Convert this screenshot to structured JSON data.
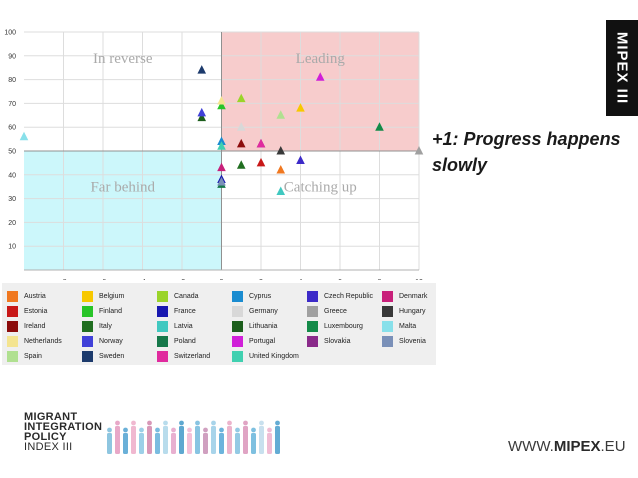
{
  "badge": {
    "text": "MIPEX III"
  },
  "tagline": "+1: Progress happens slowly",
  "logo": {
    "line1": "MIGRANT",
    "line2": "INTEGRATION",
    "line3": "POLICY",
    "line4": "INDEX III"
  },
  "url": {
    "prefix": "WWW.",
    "brand": "MIPEX",
    "suffix": ".EU"
  },
  "chart_data": {
    "type": "scatter",
    "title": "",
    "xlabel": "",
    "ylabel": "",
    "xlim": [
      -10,
      10
    ],
    "ylim": [
      0,
      100
    ],
    "x_ticks": [
      -8,
      -6,
      -4,
      -2,
      0,
      2,
      4,
      6,
      8,
      10
    ],
    "y_ticks": [
      10,
      20,
      30,
      40,
      50,
      60,
      70,
      80,
      90,
      100
    ],
    "grid": true,
    "quadrants": [
      {
        "label": "In reverse",
        "color": "#ffffff"
      },
      {
        "label": "Leading",
        "color": "#f7cccc"
      },
      {
        "label": "Far behind",
        "color": "#ccf7fb"
      },
      {
        "label": "Catching up",
        "color": "#ffffff"
      }
    ],
    "legend_placement": "bottom",
    "series": [
      {
        "name": "Austria",
        "color": "#f07820",
        "points": [
          [
            3,
            42
          ]
        ]
      },
      {
        "name": "Belgium",
        "color": "#f7c800",
        "points": [
          [
            4,
            68
          ]
        ]
      },
      {
        "name": "Canada",
        "color": "#9ad42a",
        "points": [
          [
            1,
            72
          ]
        ]
      },
      {
        "name": "Cyprus",
        "color": "#1a8cd0",
        "points": [
          [
            0,
            54
          ]
        ]
      },
      {
        "name": "Czech Republic",
        "color": "#3c2ac8",
        "points": [
          [
            4,
            46
          ]
        ]
      },
      {
        "name": "Denmark",
        "color": "#c8207a",
        "points": [
          [
            0,
            43
          ]
        ]
      },
      {
        "name": "Estonia",
        "color": "#c81818",
        "points": [
          [
            2,
            45
          ]
        ]
      },
      {
        "name": "Finland",
        "color": "#28c428",
        "points": [
          [
            0,
            69
          ]
        ]
      },
      {
        "name": "France",
        "color": "#1818b0",
        "points": [
          [
            0,
            38
          ]
        ]
      },
      {
        "name": "Germany",
        "color": "#d8d8d8",
        "points": [
          [
            1,
            60
          ]
        ]
      },
      {
        "name": "Greece",
        "color": "#a0a0a0",
        "points": [
          [
            10,
            50
          ]
        ]
      },
      {
        "name": "Hungary",
        "color": "#383838",
        "points": [
          [
            3,
            50
          ]
        ]
      },
      {
        "name": "Ireland",
        "color": "#8c0c0c",
        "points": [
          [
            1,
            53
          ]
        ]
      },
      {
        "name": "Italy",
        "color": "#206e20",
        "points": [
          [
            1,
            44
          ]
        ]
      },
      {
        "name": "Latvia",
        "color": "#40c8c0",
        "points": [
          [
            3,
            33
          ]
        ]
      },
      {
        "name": "Lithuania",
        "color": "#1c5e1c",
        "points": [
          [
            -1,
            64
          ]
        ]
      },
      {
        "name": "Luxembourg",
        "color": "#138a48",
        "points": [
          [
            8,
            60
          ]
        ]
      },
      {
        "name": "Malta",
        "color": "#88e0ea",
        "points": [
          [
            -10,
            56
          ]
        ]
      },
      {
        "name": "Netherlands",
        "color": "#f4e490",
        "points": [
          [
            0,
            71
          ]
        ]
      },
      {
        "name": "Norway",
        "color": "#4040d8",
        "points": [
          [
            -1,
            66
          ]
        ]
      },
      {
        "name": "Poland",
        "color": "#16784a",
        "points": [
          [
            0,
            36
          ]
        ]
      },
      {
        "name": "Portugal",
        "color": "#d020d8",
        "points": [
          [
            5,
            81
          ]
        ]
      },
      {
        "name": "Slovakia",
        "color": "#8a2a8a",
        "points": [
          [
            2,
            53
          ]
        ]
      },
      {
        "name": "Slovenia",
        "color": "#7a90b8",
        "points": [
          [
            0,
            37
          ]
        ]
      },
      {
        "name": "Spain",
        "color": "#b0e090",
        "points": [
          [
            3,
            65
          ]
        ]
      },
      {
        "name": "Sweden",
        "color": "#1c3a6c",
        "points": [
          [
            -1,
            84
          ]
        ]
      },
      {
        "name": "Switzerland",
        "color": "#e02a9e",
        "points": [
          [
            2,
            53
          ]
        ]
      },
      {
        "name": "United Kingdom",
        "color": "#40d0b0",
        "points": [
          [
            0,
            52
          ]
        ]
      }
    ]
  }
}
